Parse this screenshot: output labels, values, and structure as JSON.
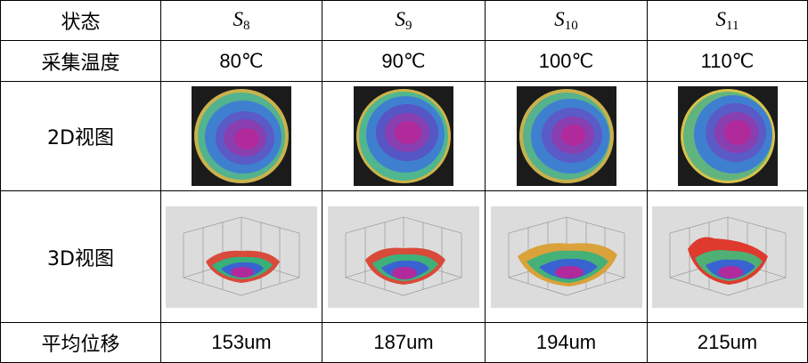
{
  "table": {
    "header_label": "状态",
    "states": [
      {
        "letter": "S",
        "sub": "8"
      },
      {
        "letter": "S",
        "sub": "9"
      },
      {
        "letter": "S",
        "sub": "10"
      },
      {
        "letter": "S",
        "sub": "11"
      }
    ],
    "rows": {
      "temperature": {
        "label": "采集温度",
        "values": [
          "80℃",
          "90℃",
          "100℃",
          "110℃"
        ]
      },
      "view2d": {
        "label": "2D视图"
      },
      "view3d": {
        "label": "3D视图"
      },
      "displacement": {
        "label": "平均位移",
        "values": [
          "153um",
          "187um",
          "194um",
          "215um"
        ]
      }
    }
  },
  "colors": {
    "border": "#000000",
    "plot_bg": "#dcdcdc",
    "heat_center": "#b02a9c",
    "heat_mid": "#3f7fd0",
    "heat_edge": "#d8c24a"
  }
}
